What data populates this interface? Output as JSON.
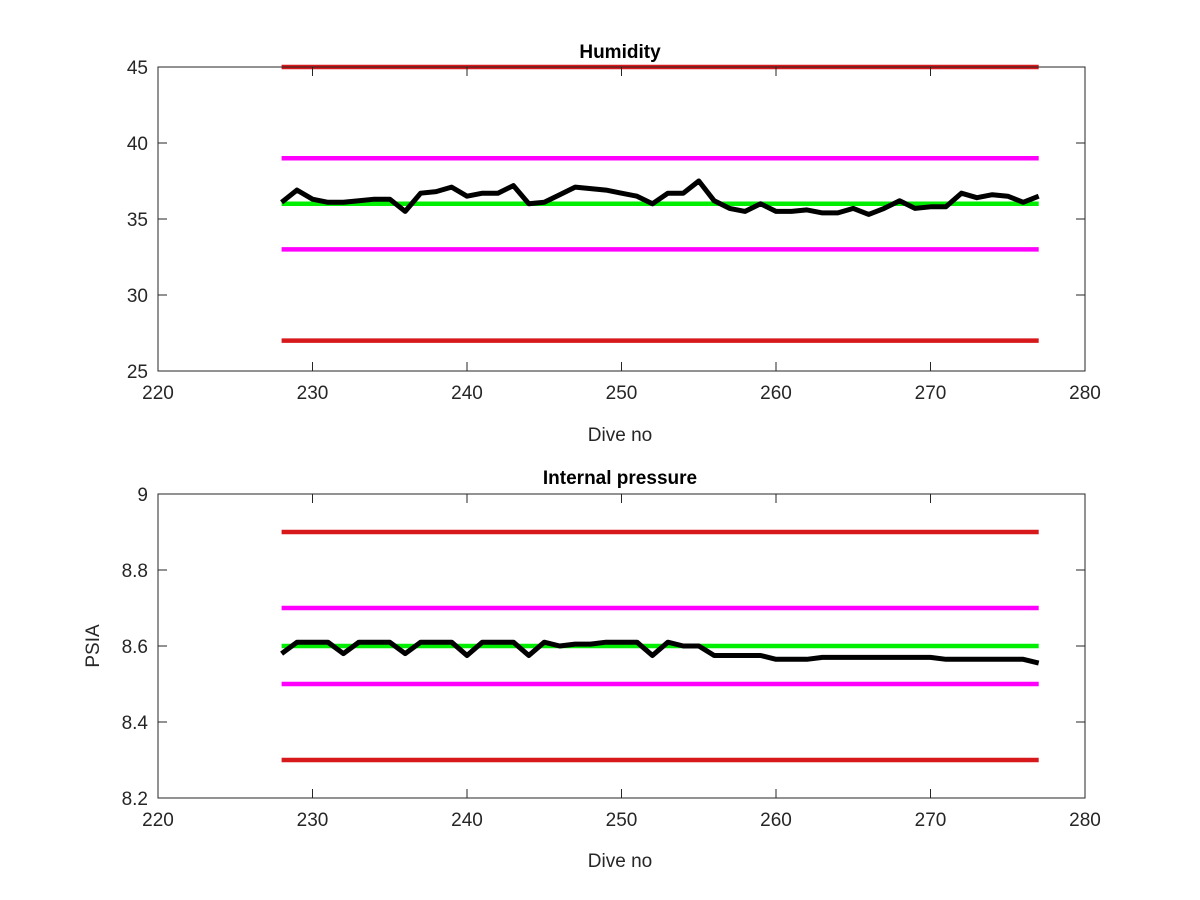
{
  "chart_data": [
    {
      "type": "line",
      "title": "Humidity",
      "xlabel": "Dive no",
      "ylabel": "",
      "xlim": [
        220,
        280
      ],
      "ylim": [
        25,
        45
      ],
      "xticks": [
        220,
        230,
        240,
        250,
        260,
        270,
        280
      ],
      "yticks": [
        25,
        30,
        35,
        40,
        45
      ],
      "grid": false,
      "series": [
        {
          "role": "upper-red-limit",
          "color": "#d7191c",
          "x": [
            228,
            277
          ],
          "y": [
            45,
            45
          ]
        },
        {
          "role": "upper-magenta-limit",
          "color": "#ff00ff",
          "x": [
            228,
            277
          ],
          "y": [
            39,
            39
          ]
        },
        {
          "role": "green-reference",
          "color": "#00ee00",
          "x": [
            228,
            277
          ],
          "y": [
            36,
            36
          ]
        },
        {
          "role": "lower-magenta-limit",
          "color": "#ff00ff",
          "x": [
            228,
            277
          ],
          "y": [
            33,
            33
          ]
        },
        {
          "role": "lower-red-limit",
          "color": "#d7191c",
          "x": [
            228,
            277
          ],
          "y": [
            27,
            27
          ]
        },
        {
          "role": "measured",
          "color": "#000000",
          "x": [
            228,
            229,
            230,
            231,
            232,
            233,
            234,
            235,
            236,
            237,
            238,
            239,
            240,
            241,
            242,
            243,
            244,
            245,
            246,
            247,
            248,
            249,
            250,
            251,
            252,
            253,
            254,
            255,
            256,
            257,
            258,
            259,
            260,
            261,
            262,
            263,
            264,
            265,
            266,
            267,
            268,
            269,
            270,
            271,
            272,
            273,
            274,
            275,
            276,
            277
          ],
          "y": [
            36.1,
            36.9,
            36.3,
            36.1,
            36.1,
            36.2,
            36.3,
            36.3,
            35.5,
            36.7,
            36.8,
            37.1,
            36.5,
            36.7,
            36.7,
            37.2,
            36.0,
            36.1,
            36.6,
            37.1,
            37.0,
            36.9,
            36.7,
            36.5,
            36.0,
            36.7,
            36.7,
            37.5,
            36.2,
            35.7,
            35.5,
            36.0,
            35.5,
            35.5,
            35.6,
            35.4,
            35.4,
            35.7,
            35.3,
            35.7,
            36.2,
            35.7,
            35.8,
            35.8,
            36.7,
            36.4,
            36.6,
            36.5,
            36.1,
            36.5
          ]
        }
      ]
    },
    {
      "type": "line",
      "title": "Internal pressure",
      "xlabel": "Dive no",
      "ylabel": "PSIA",
      "xlim": [
        220,
        280
      ],
      "ylim": [
        8.2,
        9
      ],
      "xticks": [
        220,
        230,
        240,
        250,
        260,
        270,
        280
      ],
      "yticks": [
        8.2,
        8.4,
        8.6,
        8.8,
        9
      ],
      "grid": false,
      "series": [
        {
          "role": "upper-red-limit",
          "color": "#d7191c",
          "x": [
            228,
            277
          ],
          "y": [
            8.9,
            8.9
          ]
        },
        {
          "role": "upper-magenta-limit",
          "color": "#ff00ff",
          "x": [
            228,
            277
          ],
          "y": [
            8.7,
            8.7
          ]
        },
        {
          "role": "green-reference",
          "color": "#00ee00",
          "x": [
            228,
            277
          ],
          "y": [
            8.6,
            8.6
          ]
        },
        {
          "role": "lower-magenta-limit",
          "color": "#ff00ff",
          "x": [
            228,
            277
          ],
          "y": [
            8.5,
            8.5
          ]
        },
        {
          "role": "lower-red-limit",
          "color": "#d7191c",
          "x": [
            228,
            277
          ],
          "y": [
            8.3,
            8.3
          ]
        },
        {
          "role": "measured",
          "color": "#000000",
          "x": [
            228,
            229,
            230,
            231,
            232,
            233,
            234,
            235,
            236,
            237,
            238,
            239,
            240,
            241,
            242,
            243,
            244,
            245,
            246,
            247,
            248,
            249,
            250,
            251,
            252,
            253,
            254,
            255,
            256,
            257,
            258,
            259,
            260,
            261,
            262,
            263,
            264,
            265,
            266,
            267,
            268,
            269,
            270,
            271,
            272,
            273,
            274,
            275,
            276,
            277
          ],
          "y": [
            8.58,
            8.61,
            8.61,
            8.61,
            8.58,
            8.61,
            8.61,
            8.61,
            8.58,
            8.61,
            8.61,
            8.61,
            8.575,
            8.61,
            8.61,
            8.61,
            8.575,
            8.61,
            8.6,
            8.605,
            8.605,
            8.61,
            8.61,
            8.61,
            8.575,
            8.61,
            8.6,
            8.6,
            8.575,
            8.575,
            8.575,
            8.575,
            8.565,
            8.565,
            8.565,
            8.57,
            8.57,
            8.57,
            8.57,
            8.57,
            8.57,
            8.57,
            8.57,
            8.565,
            8.565,
            8.565,
            8.565,
            8.565,
            8.565,
            8.555
          ]
        }
      ]
    }
  ]
}
